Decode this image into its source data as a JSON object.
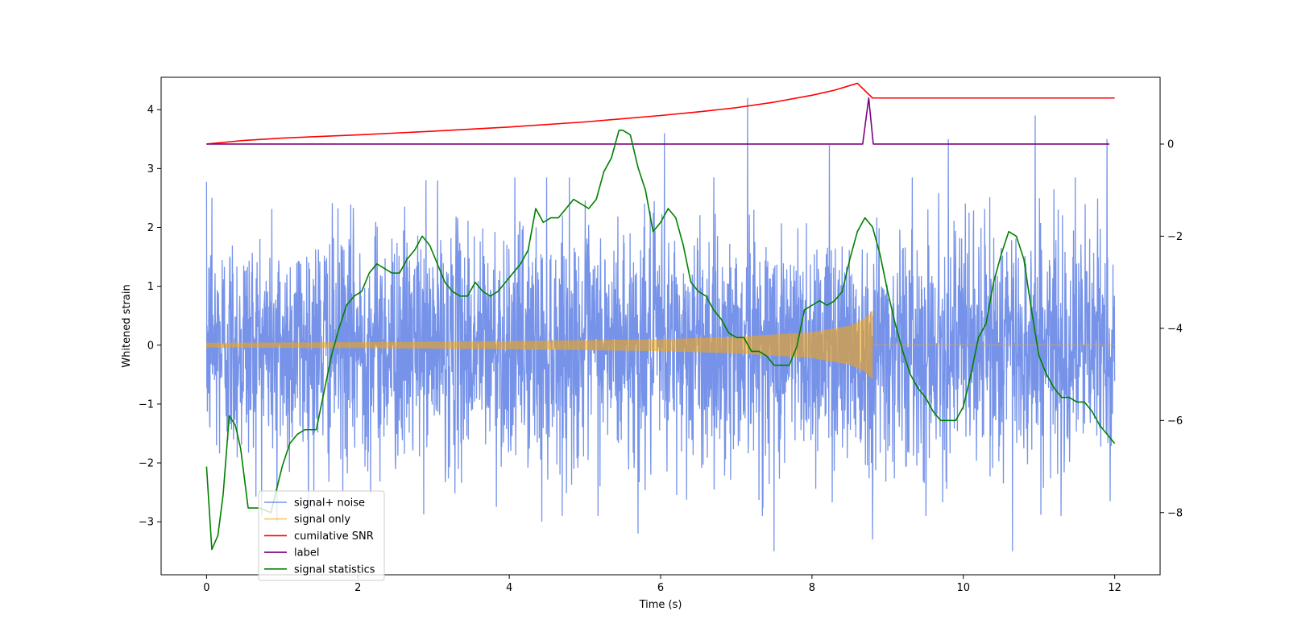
{
  "chart_data": {
    "type": "line",
    "title": "",
    "xlabel": "Time (s)",
    "ylabel": "Whitened strain",
    "y2label": "",
    "xlim": [
      -0.6,
      12.6
    ],
    "ylim": [
      -3.9,
      4.55
    ],
    "y2lim": [
      -9.35,
      1.45
    ],
    "x_ticks": [
      0,
      2,
      4,
      6,
      8,
      10,
      12
    ],
    "y_ticks": [
      -3,
      -2,
      -1,
      0,
      1,
      2,
      3,
      4
    ],
    "y2_ticks": [
      -8,
      -6,
      -4,
      -2,
      0
    ],
    "grid": false,
    "legend_position": "lower-left",
    "legend": [
      {
        "label": "signal+ noise",
        "color": "#4169E1"
      },
      {
        "label": "signal only",
        "color": "#FFA500"
      },
      {
        "label": "cumilative SNR",
        "color": "#FF0000"
      },
      {
        "label": "label",
        "color": "#800080"
      },
      {
        "label": "signal statistics",
        "color": "#008000"
      }
    ],
    "series": [
      {
        "name": "signal+ noise",
        "axis": "left",
        "color": "#4169E1",
        "x_range": [
          0,
          12
        ],
        "amplitude_std": 1.0,
        "peaks": [
          [
            0.07,
            2.5
          ],
          [
            0.93,
            -3.0
          ],
          [
            2.9,
            2.8
          ],
          [
            4.43,
            -3.0
          ],
          [
            5.7,
            -3.2
          ],
          [
            6.05,
            3.6
          ],
          [
            7.15,
            4.2
          ],
          [
            7.5,
            -3.5
          ],
          [
            8.23,
            3.4
          ],
          [
            8.8,
            -3.3
          ],
          [
            9.8,
            3.5
          ],
          [
            10.65,
            -3.5
          ],
          [
            10.95,
            3.9
          ],
          [
            11.9,
            3.5
          ]
        ]
      },
      {
        "name": "signal only",
        "axis": "left",
        "color": "#FFA500",
        "x_range": [
          0,
          12
        ],
        "merger_time": 8.8,
        "envelope": [
          [
            0,
            0.04
          ],
          [
            2,
            0.05
          ],
          [
            4,
            0.07
          ],
          [
            6,
            0.1
          ],
          [
            7,
            0.14
          ],
          [
            8,
            0.22
          ],
          [
            8.5,
            0.33
          ],
          [
            8.7,
            0.45
          ],
          [
            8.8,
            0.58
          ],
          [
            8.82,
            0.0
          ]
        ]
      },
      {
        "name": "cumilative SNR",
        "axis": "right",
        "color": "#FF0000",
        "x": [
          0,
          0.5,
          1,
          2,
          3,
          4,
          5,
          6,
          6.5,
          7,
          7.5,
          8,
          8.3,
          8.6,
          8.8,
          12
        ],
        "y": [
          0.0,
          0.08,
          0.13,
          0.2,
          0.28,
          0.37,
          0.48,
          0.62,
          0.7,
          0.79,
          0.91,
          1.06,
          1.17,
          1.32,
          1.0,
          1.0
        ]
      },
      {
        "name": "label",
        "axis": "right",
        "color": "#800080",
        "x": [
          0,
          8.67,
          8.75,
          8.81,
          11.93
        ],
        "y": [
          0,
          0,
          1.0,
          0,
          0
        ]
      },
      {
        "name": "signal statistics",
        "axis": "right",
        "color": "#008000",
        "x": [
          0,
          0.07,
          0.15,
          0.22,
          0.3,
          0.38,
          0.45,
          0.55,
          0.7,
          0.85,
          1.0,
          1.1,
          1.2,
          1.3,
          1.45,
          1.55,
          1.65,
          1.75,
          1.85,
          1.95,
          2.05,
          2.15,
          2.25,
          2.35,
          2.45,
          2.55,
          2.65,
          2.75,
          2.85,
          2.95,
          3.05,
          3.15,
          3.25,
          3.35,
          3.45,
          3.55,
          3.65,
          3.75,
          3.85,
          3.95,
          4.05,
          4.15,
          4.25,
          4.35,
          4.45,
          4.55,
          4.65,
          4.75,
          4.85,
          4.95,
          5.05,
          5.15,
          5.25,
          5.35,
          5.45,
          5.5,
          5.6,
          5.7,
          5.8,
          5.9,
          6.0,
          6.1,
          6.2,
          6.3,
          6.4,
          6.5,
          6.6,
          6.7,
          6.8,
          6.9,
          7.0,
          7.1,
          7.2,
          7.3,
          7.4,
          7.5,
          7.6,
          7.7,
          7.8,
          7.9,
          8.0,
          8.1,
          8.2,
          8.3,
          8.4,
          8.5,
          8.6,
          8.7,
          8.8,
          8.9,
          9.0,
          9.1,
          9.2,
          9.3,
          9.4,
          9.5,
          9.6,
          9.7,
          9.8,
          9.9,
          10.0,
          10.1,
          10.2,
          10.3,
          10.4,
          10.5,
          10.6,
          10.7,
          10.8,
          10.9,
          11.0,
          11.1,
          11.2,
          11.3,
          11.4,
          11.5,
          11.6,
          11.7,
          11.8,
          11.9,
          12.0
        ],
        "y": [
          -7.0,
          -8.8,
          -8.5,
          -7.6,
          -5.9,
          -6.1,
          -6.6,
          -7.9,
          -7.9,
          -8.0,
          -7.0,
          -6.5,
          -6.3,
          -6.2,
          -6.2,
          -5.4,
          -4.6,
          -4.0,
          -3.5,
          -3.3,
          -3.2,
          -2.8,
          -2.6,
          -2.7,
          -2.8,
          -2.8,
          -2.5,
          -2.3,
          -2.0,
          -2.2,
          -2.6,
          -3.0,
          -3.2,
          -3.3,
          -3.3,
          -3.0,
          -3.2,
          -3.3,
          -3.2,
          -3.0,
          -2.8,
          -2.6,
          -2.3,
          -1.4,
          -1.7,
          -1.6,
          -1.6,
          -1.4,
          -1.2,
          -1.3,
          -1.4,
          -1.2,
          -0.6,
          -0.3,
          0.3,
          0.3,
          0.2,
          -0.5,
          -1.0,
          -1.9,
          -1.7,
          -1.4,
          -1.6,
          -2.2,
          -3.0,
          -3.2,
          -3.3,
          -3.6,
          -3.8,
          -4.1,
          -4.2,
          -4.2,
          -4.5,
          -4.5,
          -4.6,
          -4.8,
          -4.8,
          -4.8,
          -4.4,
          -3.6,
          -3.5,
          -3.4,
          -3.5,
          -3.4,
          -3.2,
          -2.5,
          -1.9,
          -1.6,
          -1.8,
          -2.4,
          -3.2,
          -3.9,
          -4.5,
          -5.0,
          -5.3,
          -5.5,
          -5.8,
          -6.0,
          -6.0,
          -6.0,
          -5.7,
          -5.0,
          -4.2,
          -3.9,
          -3.0,
          -2.4,
          -1.9,
          -2.0,
          -2.5,
          -3.6,
          -4.6,
          -5.0,
          -5.3,
          -5.5,
          -5.5,
          -5.6,
          -5.6,
          -5.8,
          -6.1,
          -6.3,
          -6.5
        ]
      }
    ]
  }
}
